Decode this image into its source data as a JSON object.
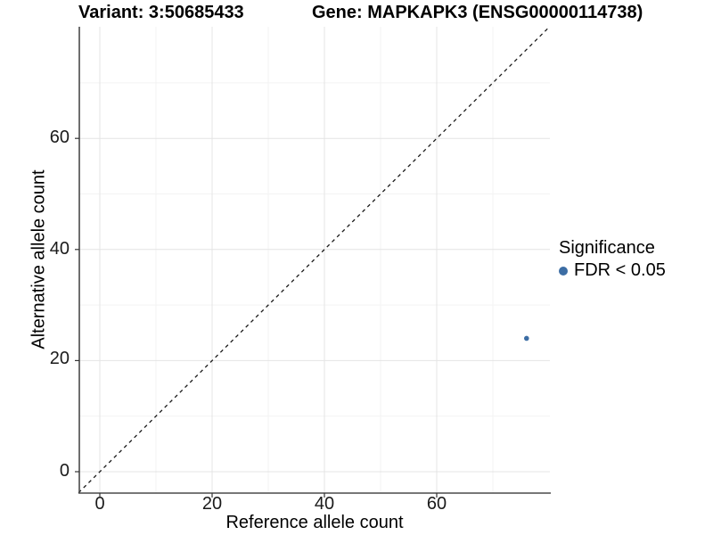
{
  "titles": {
    "variant": "Variant: 3:50685433",
    "gene": "Gene: MAPKAPK3 (ENSG00000114738)"
  },
  "legend": {
    "title": "Significance",
    "items": [
      {
        "label": "FDR < 0.05",
        "color": "#3c6da4"
      }
    ]
  },
  "colors": {
    "point": "#3c6da4",
    "major_grid": "#e4e4e4",
    "minor_grid": "#f3f3f3",
    "axis_line": "#4a4a4a",
    "tick_mark": "#333333",
    "dashed_line": "#1a1a1a",
    "background": "#ffffff"
  },
  "chart_data": {
    "type": "scatter",
    "title": "Variant: 3:50685433  /  Gene: MAPKAPK3 (ENSG00000114738)",
    "xlabel": "Reference allele count",
    "ylabel": "Alternative allele count",
    "xlim": [
      -3.8,
      80.2
    ],
    "ylim": [
      -3.8,
      80.1
    ],
    "x_ticks": [
      0,
      20,
      40,
      60
    ],
    "y_ticks": [
      0,
      20,
      40,
      60
    ],
    "x_minor_ticks": [
      10,
      30,
      50,
      70
    ],
    "y_minor_ticks": [
      10,
      30,
      50,
      70
    ],
    "grid": true,
    "legend_position": "right",
    "reference_line": {
      "style": "dashed",
      "equation": "y = x",
      "from": -3.8,
      "to": 80.1
    },
    "series": [
      {
        "name": "FDR < 0.05",
        "color": "#3c6da4",
        "points": [
          {
            "x": 76,
            "y": 24
          }
        ]
      }
    ]
  }
}
